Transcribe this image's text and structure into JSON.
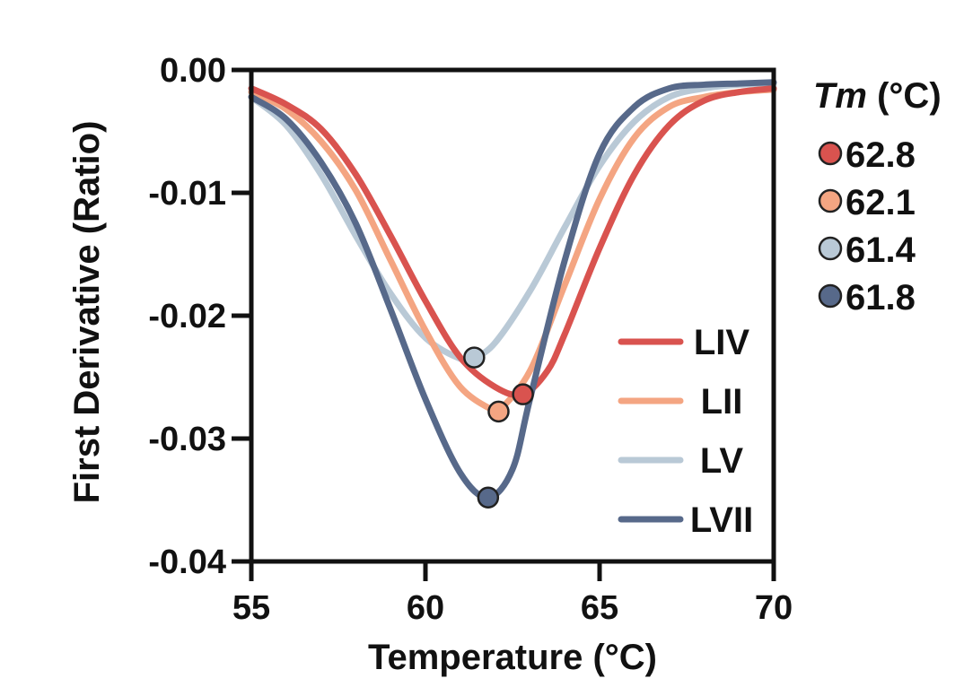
{
  "chart_data": {
    "type": "line",
    "xlabel": "Temperature (°C)",
    "ylabel": "First Derivative (Ratio)",
    "xlim": [
      55,
      70
    ],
    "ylim": [
      -0.04,
      0.0
    ],
    "x_ticks": [
      55,
      60,
      65,
      70
    ],
    "x_tick_labels": [
      "55",
      "60",
      "65",
      "70"
    ],
    "y_ticks": [
      0.0,
      -0.01,
      -0.02,
      -0.03,
      -0.04
    ],
    "y_tick_labels": [
      "0.00",
      "-0.01",
      "-0.02",
      "-0.03",
      "-0.04"
    ],
    "grid": false,
    "legend_position": "bottom-right inside plot",
    "tm_title_italic": "Tm",
    "tm_title_unit": " (°C)",
    "series": [
      {
        "name": "LIV",
        "color": "#d9534f",
        "x": [
          55,
          56,
          57,
          58,
          59,
          60,
          61,
          62,
          62.8,
          63.5,
          64,
          65,
          66,
          67,
          68,
          69,
          70
        ],
        "y": [
          -0.0015,
          -0.0028,
          -0.0048,
          -0.0085,
          -0.0135,
          -0.0188,
          -0.0234,
          -0.0258,
          -0.0264,
          -0.0245,
          -0.0215,
          -0.0145,
          -0.0085,
          -0.0045,
          -0.0025,
          -0.0018,
          -0.0015
        ],
        "tm": 62.8,
        "tm_y": -0.0264,
        "tm_label": "62.8"
      },
      {
        "name": "LII",
        "color": "#f4a582",
        "x": [
          55,
          56,
          57,
          58,
          59,
          60,
          61,
          62,
          62.1,
          63,
          64,
          65,
          66,
          67,
          68,
          69,
          70
        ],
        "y": [
          -0.0018,
          -0.0032,
          -0.0058,
          -0.0098,
          -0.0155,
          -0.0212,
          -0.0258,
          -0.0278,
          -0.0278,
          -0.0245,
          -0.0175,
          -0.0105,
          -0.0055,
          -0.003,
          -0.0022,
          -0.0018,
          -0.0016
        ],
        "tm": 62.1,
        "tm_y": -0.0278,
        "tm_label": "62.1"
      },
      {
        "name": "LV",
        "color": "#b9c9d6",
        "x": [
          55,
          56,
          57,
          58,
          59,
          60,
          61,
          61.4,
          62,
          63,
          64,
          65,
          66,
          67,
          68,
          69,
          70
        ],
        "y": [
          -0.0022,
          -0.0045,
          -0.0085,
          -0.0135,
          -0.0182,
          -0.0218,
          -0.0235,
          -0.0234,
          -0.0222,
          -0.018,
          -0.0128,
          -0.0078,
          -0.0042,
          -0.0022,
          -0.0015,
          -0.0012,
          -0.0011
        ],
        "tm": 61.4,
        "tm_y": -0.0234,
        "tm_label": "61.4"
      },
      {
        "name": "LVII",
        "color": "#57698a",
        "x": [
          55,
          56,
          57,
          58,
          59,
          60,
          61,
          61.8,
          62.5,
          63,
          64,
          65,
          66,
          67,
          68,
          69,
          70
        ],
        "y": [
          -0.0022,
          -0.004,
          -0.0075,
          -0.0125,
          -0.0195,
          -0.0268,
          -0.0328,
          -0.0348,
          -0.0325,
          -0.0268,
          -0.0155,
          -0.0068,
          -0.003,
          -0.0015,
          -0.0012,
          -0.0011,
          -0.001
        ],
        "tm": 61.8,
        "tm_y": -0.0348,
        "tm_label": "61.8"
      }
    ]
  }
}
